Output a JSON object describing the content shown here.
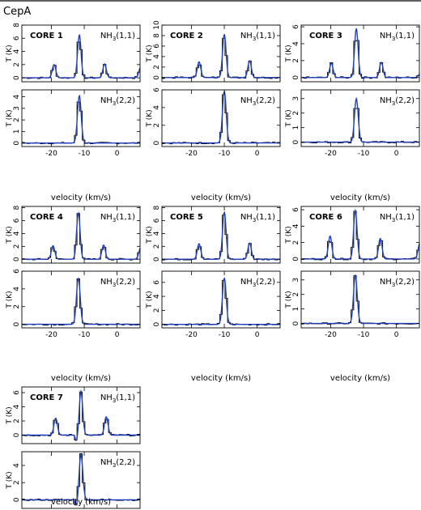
{
  "figure_title": "CepA",
  "xlabel": "velocity (km/s)",
  "ylabel": "T (K)",
  "line_labels": {
    "nh3_11": {
      "main": "NH",
      "sub": "3",
      "suffix": "(1,1)"
    },
    "nh3_22": {
      "main": "NH",
      "sub": "3",
      "suffix": "(2,2)"
    }
  },
  "colors": {
    "observed": "#000000",
    "fit": "#1f3fbf"
  },
  "chart_data": [
    {
      "core": "CORE 1",
      "type": "line",
      "x_range": [
        -29,
        7
      ],
      "x_ticks": [
        -20,
        -10,
        0
      ],
      "nh3_11": {
        "ylim": [
          -0.6,
          8
        ],
        "yticks": [
          0,
          2,
          4,
          6,
          8
        ],
        "vsys": -11.5,
        "peaks": [
          {
            "v": -11.5,
            "T": 6.5
          },
          {
            "v": -19.2,
            "T": 2.0
          },
          {
            "v": -3.8,
            "T": 2.1
          }
        ],
        "edge": 1.6
      },
      "nh3_22": {
        "ylim": [
          -0.3,
          4.6
        ],
        "yticks": [
          0,
          1,
          2,
          3,
          4
        ],
        "vsys": -11.5,
        "peaks": [
          {
            "v": -11.5,
            "T": 4.1
          }
        ]
      }
    },
    {
      "core": "CORE 2",
      "type": "line",
      "x_range": [
        -29,
        7
      ],
      "x_ticks": [
        -20,
        -10,
        0
      ],
      "nh3_11": {
        "ylim": [
          -0.8,
          10
        ],
        "yticks": [
          0,
          2,
          4,
          6,
          8,
          10
        ],
        "vsys": -10.0,
        "peaks": [
          {
            "v": -10.0,
            "T": 8.2
          },
          {
            "v": -17.7,
            "T": 3.0
          },
          {
            "v": -2.3,
            "T": 3.2
          }
        ],
        "edge": 0.0
      },
      "nh3_22": {
        "ylim": [
          -0.4,
          6
        ],
        "yticks": [
          0,
          2,
          4,
          6
        ],
        "vsys": -10.0,
        "peaks": [
          {
            "v": -10.0,
            "T": 5.8
          }
        ]
      }
    },
    {
      "core": "CORE 3",
      "type": "line",
      "x_range": [
        -29,
        7
      ],
      "x_ticks": [
        -20,
        -10,
        0
      ],
      "nh3_11": {
        "ylim": [
          -0.5,
          6.2
        ],
        "yticks": [
          0,
          2,
          4,
          6
        ],
        "vsys": -12.2,
        "peaks": [
          {
            "v": -12.2,
            "T": 5.8
          },
          {
            "v": -19.8,
            "T": 1.7
          },
          {
            "v": -4.6,
            "T": 1.8
          }
        ],
        "edge": 0.4
      },
      "nh3_22": {
        "ylim": [
          -0.3,
          3.6
        ],
        "yticks": [
          0,
          1,
          2,
          3
        ],
        "vsys": -12.2,
        "peaks": [
          {
            "v": -12.2,
            "T": 3.0
          }
        ]
      }
    },
    {
      "core": "CORE 4",
      "type": "line",
      "x_range": [
        -29,
        7
      ],
      "x_ticks": [
        -20,
        -10,
        0
      ],
      "nh3_11": {
        "ylim": [
          -0.6,
          8.2
        ],
        "yticks": [
          0,
          2,
          4,
          6,
          8
        ],
        "vsys": -11.8,
        "peaks": [
          {
            "v": -11.8,
            "T": 7.2
          },
          {
            "v": -19.5,
            "T": 2.1
          },
          {
            "v": -4.1,
            "T": 2.2
          }
        ],
        "edge": 1.8
      },
      "nh3_22": {
        "ylim": [
          -0.4,
          6
        ],
        "yticks": [
          0,
          2,
          4,
          6
        ],
        "vsys": -11.8,
        "peaks": [
          {
            "v": -11.8,
            "T": 5.2
          }
        ]
      }
    },
    {
      "core": "CORE 5",
      "type": "line",
      "x_range": [
        -29,
        7
      ],
      "x_ticks": [
        -20,
        -10,
        0
      ],
      "nh3_11": {
        "ylim": [
          -0.6,
          8.2
        ],
        "yticks": [
          0,
          2,
          4,
          6,
          8
        ],
        "vsys": -10.0,
        "peaks": [
          {
            "v": -10.0,
            "T": 7.3
          },
          {
            "v": -17.7,
            "T": 2.4
          },
          {
            "v": -2.3,
            "T": 2.5
          }
        ],
        "edge": 0.0
      },
      "nh3_22": {
        "ylim": [
          -0.5,
          7.6
        ],
        "yticks": [
          0,
          2,
          4,
          6
        ],
        "vsys": -10.0,
        "peaks": [
          {
            "v": -10.0,
            "T": 6.6
          }
        ]
      }
    },
    {
      "core": "CORE 6",
      "type": "line",
      "x_range": [
        -29,
        7
      ],
      "x_ticks": [
        -20,
        -10,
        0
      ],
      "nh3_11": {
        "ylim": [
          -0.5,
          6.4
        ],
        "yticks": [
          0,
          2,
          4,
          6
        ],
        "vsys": -12.5,
        "peaks": [
          {
            "v": -12.5,
            "T": 5.9
          },
          {
            "v": -20.2,
            "T": 2.8
          },
          {
            "v": -4.9,
            "T": 2.5
          }
        ],
        "edge": 2.0
      },
      "nh3_22": {
        "ylim": [
          -0.3,
          3.6
        ],
        "yticks": [
          0,
          1,
          2,
          3
        ],
        "vsys": -12.5,
        "peaks": [
          {
            "v": -12.5,
            "T": 3.3
          }
        ]
      }
    },
    {
      "core": "CORE 7",
      "type": "line",
      "x_range": [
        -29,
        7
      ],
      "x_ticks": [
        -20,
        -10,
        0
      ],
      "nh3_11": {
        "ylim": [
          -1.2,
          6.8
        ],
        "yticks": [
          0,
          2,
          4,
          6
        ],
        "vsys": -11.0,
        "peaks": [
          {
            "v": -11.0,
            "T": 6.2
          },
          {
            "v": -18.7,
            "T": 2.4
          },
          {
            "v": -3.3,
            "T": 2.6
          }
        ],
        "edge": 0.0,
        "absorption": {
          "v": -12.3,
          "T": -1.0
        }
      },
      "nh3_22": {
        "ylim": [
          -1.0,
          5.6
        ],
        "yticks": [
          0,
          2,
          4
        ],
        "vsys": -11.0,
        "peaks": [
          {
            "v": -11.0,
            "T": 5.3
          }
        ],
        "absorption": {
          "v": -12.3,
          "T": -0.9
        }
      }
    }
  ]
}
